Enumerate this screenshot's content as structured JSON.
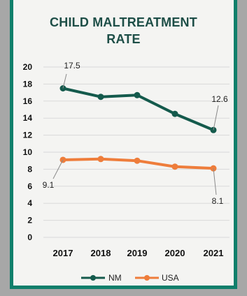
{
  "chart_data": {
    "type": "line",
    "title_line1": "CHILD MALTREATMENT",
    "title_line2": "RATE",
    "categories": [
      "2017",
      "2018",
      "2019",
      "2020",
      "2021"
    ],
    "ylim": [
      0,
      20
    ],
    "yticks": [
      "0",
      "2",
      "4",
      "6",
      "8",
      "10",
      "12",
      "14",
      "16",
      "18",
      "20"
    ],
    "grid": true,
    "legend_position": "bottom",
    "series": [
      {
        "name": "NM",
        "color": "#145a4c",
        "values": [
          17.5,
          16.5,
          16.7,
          14.5,
          12.6
        ],
        "labels": [
          {
            "index": 0,
            "text": "17.5"
          },
          {
            "index": 4,
            "text": "12.6"
          }
        ]
      },
      {
        "name": "USA",
        "color": "#ee7d3b",
        "values": [
          9.1,
          9.2,
          9.0,
          8.3,
          8.1
        ],
        "labels": [
          {
            "index": 0,
            "text": "9.1"
          },
          {
            "index": 4,
            "text": "8.1"
          }
        ]
      }
    ]
  }
}
